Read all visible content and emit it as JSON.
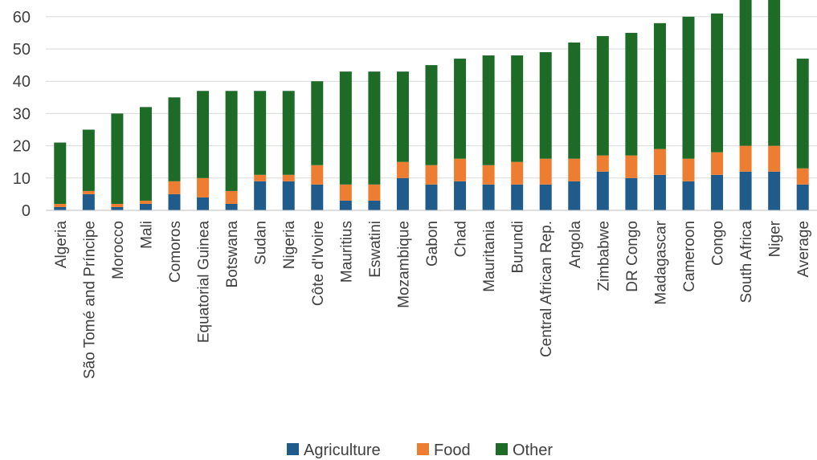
{
  "chart_data": {
    "type": "bar",
    "stacked": true,
    "title": "",
    "xlabel": "",
    "ylabel": "",
    "ylim": [
      0,
      65
    ],
    "yticks": [
      0,
      10,
      20,
      30,
      40,
      50,
      60
    ],
    "grid": true,
    "legend_position": "bottom",
    "categories": [
      "Algeria",
      "São Tomé and Príncipe",
      "Morocco",
      "Mali",
      "Comoros",
      "Equatorial Guinea",
      "Botswana",
      "Sudan",
      "Nigeria",
      "Côte d'Ivoire",
      "Mauritius",
      "Eswatini",
      "Mozambique",
      "Gabon",
      "Chad",
      "Mauritania",
      "Burundi",
      "Central African Rep.",
      "Angola",
      "Zimbabwe",
      "DR Congo",
      "Madagascar",
      "Cameroon",
      "Congo",
      "South Africa",
      "Niger",
      "Average"
    ],
    "series": [
      {
        "name": "Agriculture",
        "color": "#1f5c8b",
        "values": [
          1,
          5,
          1,
          2,
          5,
          4,
          2,
          9,
          9,
          8,
          3,
          3,
          10,
          8,
          9,
          8,
          8,
          8,
          9,
          12,
          10,
          11,
          9,
          11,
          12,
          12,
          8
        ]
      },
      {
        "name": "Food",
        "color": "#ed7d31",
        "values": [
          1,
          1,
          1,
          1,
          4,
          6,
          4,
          2,
          2,
          6,
          5,
          5,
          5,
          6,
          7,
          6,
          7,
          8,
          7,
          5,
          7,
          8,
          7,
          7,
          8,
          8,
          5
        ]
      },
      {
        "name": "Other",
        "color": "#1d6b27",
        "values": [
          19,
          19,
          28,
          29,
          26,
          27,
          31,
          26,
          26,
          26,
          35,
          35,
          28,
          31,
          31,
          34,
          33,
          33,
          36,
          37,
          38,
          39,
          44,
          43,
          46,
          46,
          34
        ]
      }
    ]
  }
}
